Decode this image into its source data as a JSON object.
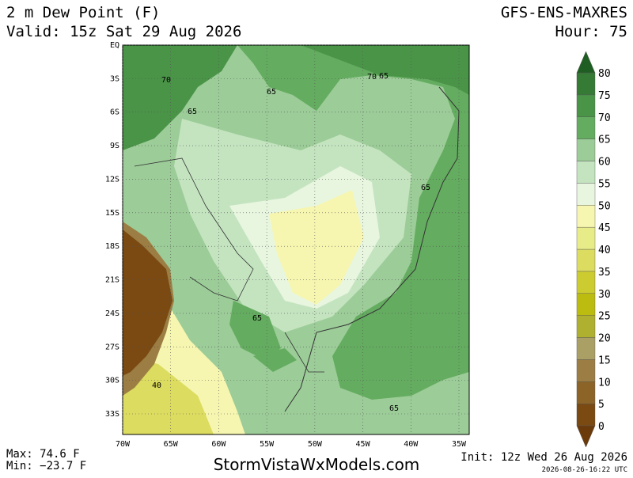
{
  "header": {
    "title": "2 m Dew Point (F)",
    "valid": "Valid: 15z Sat 29 Aug 2026",
    "model": "GFS-ENS-MAXRES",
    "hour": "Hour: 75"
  },
  "map": {
    "lat_labels": [
      "EQ",
      "3S",
      "6S",
      "9S",
      "12S",
      "15S",
      "18S",
      "21S",
      "24S",
      "27S",
      "30S",
      "33S"
    ],
    "lon_labels": [
      "70W",
      "65W",
      "60W",
      "55W",
      "50W",
      "45W",
      "40W",
      "35W"
    ],
    "contour_labels": [
      "70",
      "65",
      "65",
      "70",
      "65",
      "65",
      "65",
      "40",
      "65"
    ]
  },
  "colorbar": {
    "levels": [
      0,
      5,
      10,
      15,
      20,
      25,
      30,
      35,
      40,
      45,
      50,
      55,
      60,
      65,
      70,
      75,
      80
    ],
    "colors": [
      "#7a4a12",
      "#8c6428",
      "#9c7e44",
      "#aaa066",
      "#b0b030",
      "#bcbc10",
      "#cccc30",
      "#dcdc60",
      "#e8ec88",
      "#f6f6b0",
      "#e8f6e0",
      "#c4e4c0",
      "#9ccc98",
      "#64ac60",
      "#4a9448",
      "#357a35"
    ],
    "under_color": "#6b3a0a",
    "over_color": "#1f5e22"
  },
  "footer": {
    "max": "Max: 74.6 F",
    "min": "Min: −23.7 F",
    "site": "StormVistaWxModels.com",
    "init": "Init: 12z Wed 26 Aug 2026",
    "stamp": "2026-08-26-16:22 UTC"
  }
}
